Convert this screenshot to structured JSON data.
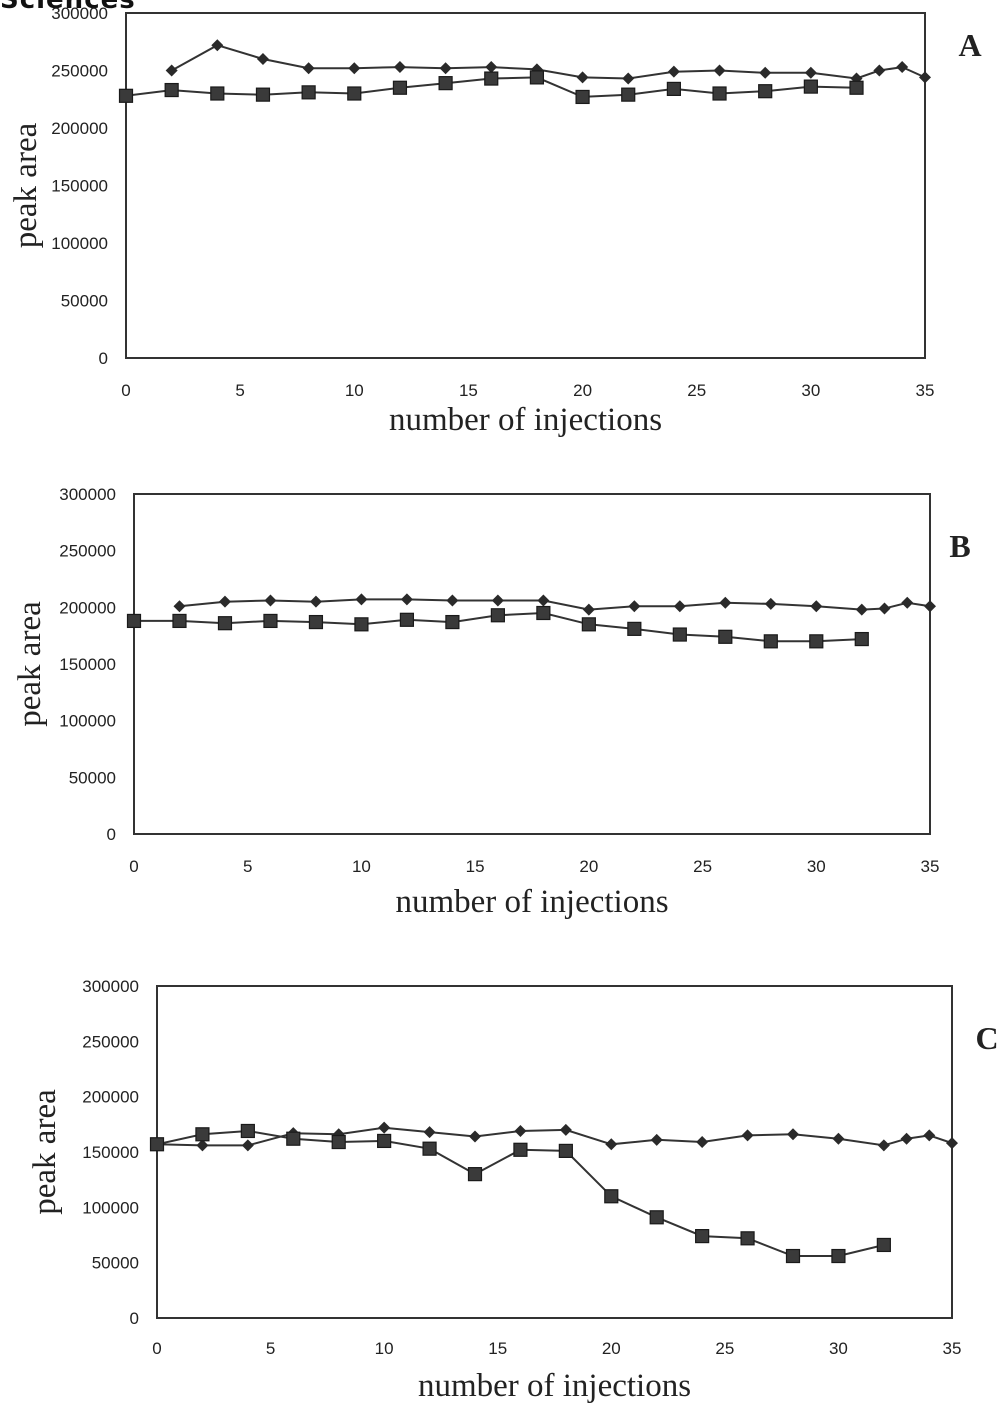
{
  "header_fragment": "Sciences",
  "chart_data": [
    {
      "type": "line",
      "panel_label": "A",
      "xlabel": "number of injections",
      "ylabel": "peak area",
      "xlim": [
        0,
        35
      ],
      "ylim": [
        0,
        300000
      ],
      "x_ticks": [
        "0",
        "5",
        "10",
        "15",
        "20",
        "25",
        "30",
        "35"
      ],
      "y_ticks": [
        "0",
        "50000",
        "100000",
        "150000",
        "200000",
        "250000",
        "300000"
      ],
      "grid": false,
      "series": [
        {
          "marker": "diamond",
          "x": [
            2,
            4,
            6,
            8,
            10,
            12,
            14,
            16,
            18,
            20,
            22,
            24,
            26,
            28,
            30,
            32,
            33,
            34,
            35
          ],
          "y": [
            250000,
            272000,
            260000,
            252000,
            252000,
            253000,
            252000,
            253000,
            251000,
            244000,
            243000,
            249000,
            250000,
            248000,
            248000,
            243000,
            250000,
            253000,
            244000
          ]
        },
        {
          "marker": "square",
          "x": [
            0,
            2,
            4,
            6,
            8,
            10,
            12,
            14,
            16,
            18,
            20,
            22,
            24,
            26,
            28,
            30,
            32
          ],
          "y": [
            228000,
            233000,
            230000,
            229000,
            231000,
            230000,
            235000,
            239000,
            243000,
            244000,
            227000,
            229000,
            234000,
            230000,
            232000,
            236000,
            235000
          ]
        }
      ]
    },
    {
      "type": "line",
      "panel_label": "B",
      "xlabel": "number of injections",
      "ylabel": "peak area",
      "xlim": [
        0,
        35
      ],
      "ylim": [
        0,
        300000
      ],
      "x_ticks": [
        "0",
        "5",
        "10",
        "15",
        "20",
        "25",
        "30",
        "35"
      ],
      "y_ticks": [
        "0",
        "50000",
        "100000",
        "150000",
        "200000",
        "250000",
        "300000"
      ],
      "grid": false,
      "series": [
        {
          "marker": "diamond",
          "x": [
            2,
            4,
            6,
            8,
            10,
            12,
            14,
            16,
            18,
            20,
            22,
            24,
            26,
            28,
            30,
            32,
            33,
            34,
            35
          ],
          "y": [
            201000,
            205000,
            206000,
            205000,
            207000,
            207000,
            206000,
            206000,
            206000,
            198000,
            201000,
            201000,
            204000,
            203000,
            201000,
            198000,
            199000,
            204000,
            201000
          ]
        },
        {
          "marker": "square",
          "x": [
            0,
            2,
            4,
            6,
            8,
            10,
            12,
            14,
            16,
            18,
            20,
            22,
            24,
            26,
            28,
            30,
            32
          ],
          "y": [
            188000,
            188000,
            186000,
            188000,
            187000,
            185000,
            189000,
            187000,
            193000,
            195000,
            185000,
            181000,
            176000,
            174000,
            170000,
            170000,
            172000
          ]
        }
      ]
    },
    {
      "type": "line",
      "panel_label": "C",
      "xlabel": "number of injections",
      "ylabel": "peak area",
      "xlim": [
        0,
        35
      ],
      "ylim": [
        0,
        300000
      ],
      "x_ticks": [
        "0",
        "5",
        "10",
        "15",
        "20",
        "25",
        "30",
        "35"
      ],
      "y_ticks": [
        "0",
        "50000",
        "100000",
        "150000",
        "200000",
        "250000",
        "300000"
      ],
      "grid": false,
      "series": [
        {
          "marker": "diamond",
          "x": [
            0,
            2,
            4,
            6,
            8,
            10,
            12,
            14,
            16,
            18,
            20,
            22,
            24,
            26,
            28,
            30,
            32,
            33,
            34,
            35
          ],
          "y": [
            157000,
            156000,
            156000,
            167000,
            166000,
            172000,
            168000,
            164000,
            169000,
            170000,
            157000,
            161000,
            159000,
            165000,
            166000,
            162000,
            156000,
            162000,
            165000,
            158000
          ]
        },
        {
          "marker": "square",
          "x": [
            0,
            2,
            4,
            6,
            8,
            10,
            12,
            14,
            16,
            18,
            20,
            22,
            24,
            26,
            28,
            30,
            32
          ],
          "y": [
            157000,
            166000,
            169000,
            162000,
            159000,
            160000,
            153000,
            130000,
            152000,
            151000,
            110000,
            91000,
            74000,
            72000,
            56000,
            56000,
            66000
          ]
        }
      ]
    }
  ]
}
